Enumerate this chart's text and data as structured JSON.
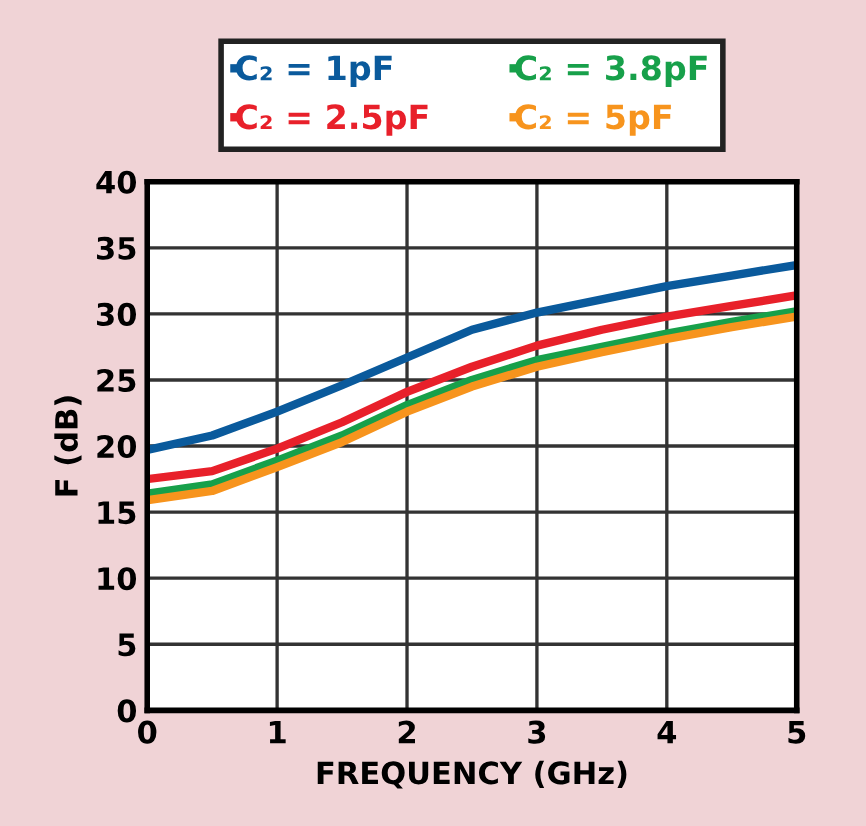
{
  "chart_data": {
    "type": "line",
    "xlabel": "FREQUENCY (GHz)",
    "ylabel": "F (dB)",
    "x": [
      0,
      0.5,
      1,
      1.5,
      2,
      2.5,
      3,
      3.5,
      4,
      4.5,
      5
    ],
    "series": [
      {
        "name": "C₂ = 1pF",
        "color": "#0a5a9c",
        "values": [
          19.7,
          20.8,
          22.6,
          24.6,
          26.7,
          28.8,
          30.1,
          31.1,
          32.1,
          32.9,
          33.7
        ]
      },
      {
        "name": "C₂ = 2.5pF",
        "color": "#e8202a",
        "values": [
          17.5,
          18.1,
          19.8,
          21.8,
          24.1,
          26.0,
          27.6,
          28.8,
          29.8,
          30.6,
          31.4
        ]
      },
      {
        "name": "C₂ = 3.8pF",
        "color": "#17a04a",
        "values": [
          16.4,
          17.1,
          18.9,
          20.8,
          23.1,
          25.0,
          26.5,
          27.5,
          28.5,
          29.4,
          30.2
        ]
      },
      {
        "name": "C₂ = 5pF",
        "color": "#f7941d",
        "values": [
          15.9,
          16.6,
          18.4,
          20.3,
          22.6,
          24.5,
          26.0,
          27.1,
          28.1,
          29.0,
          29.8
        ]
      }
    ],
    "xlim": [
      0,
      5
    ],
    "xticks": [
      0,
      1,
      2,
      3,
      4,
      5
    ],
    "ylim": [
      0,
      40
    ],
    "yticks": [
      0,
      5,
      10,
      15,
      20,
      25,
      30,
      35,
      40
    ],
    "grid": true,
    "legend": "top",
    "marker": "none",
    "line_style": "solid"
  }
}
